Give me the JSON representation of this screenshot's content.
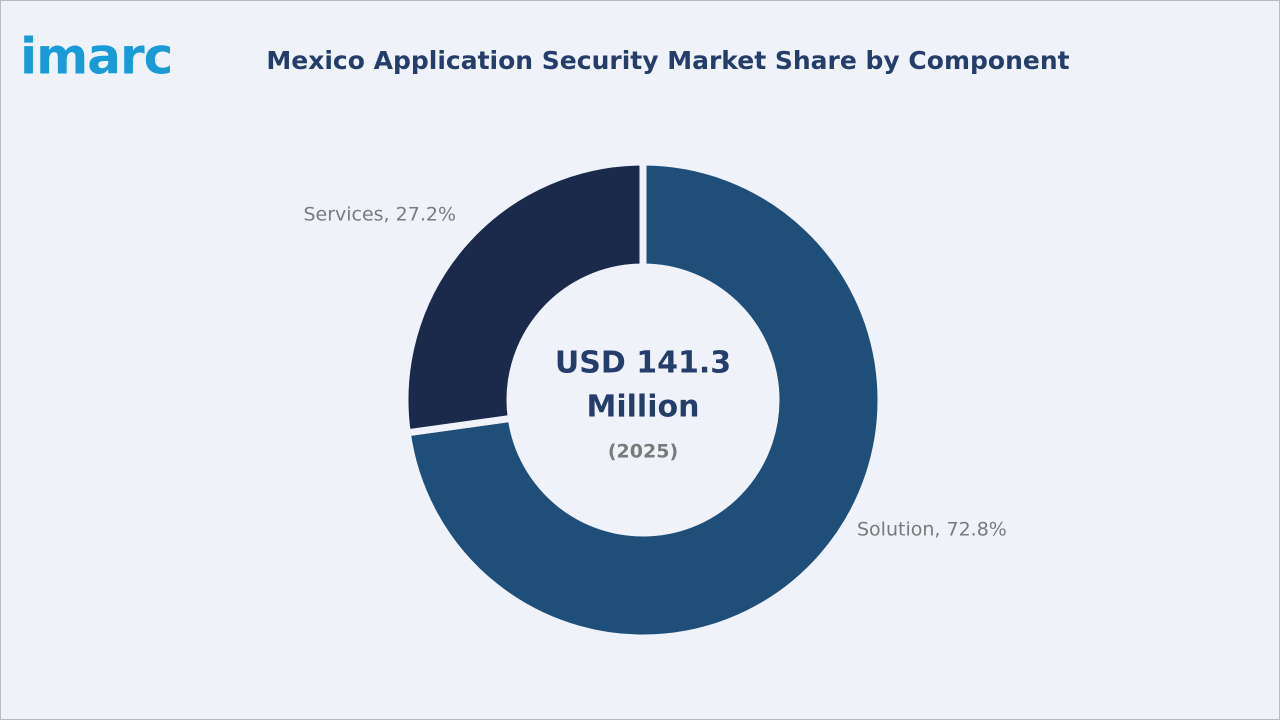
{
  "logo": "imarc",
  "chart_data": {
    "type": "donut",
    "title": "Mexico Application Security Market Share by Component",
    "categories": [
      "Solution",
      "Services"
    ],
    "values": [
      72.8,
      27.2
    ],
    "value_labels": [
      "Solution, 72.8%",
      "Services, 27.2%"
    ],
    "colors": [
      "#1f4e79",
      "#1b2a4a"
    ],
    "center_text": [
      "USD 141.3",
      "Million"
    ],
    "center_subtext": "(2025)"
  }
}
